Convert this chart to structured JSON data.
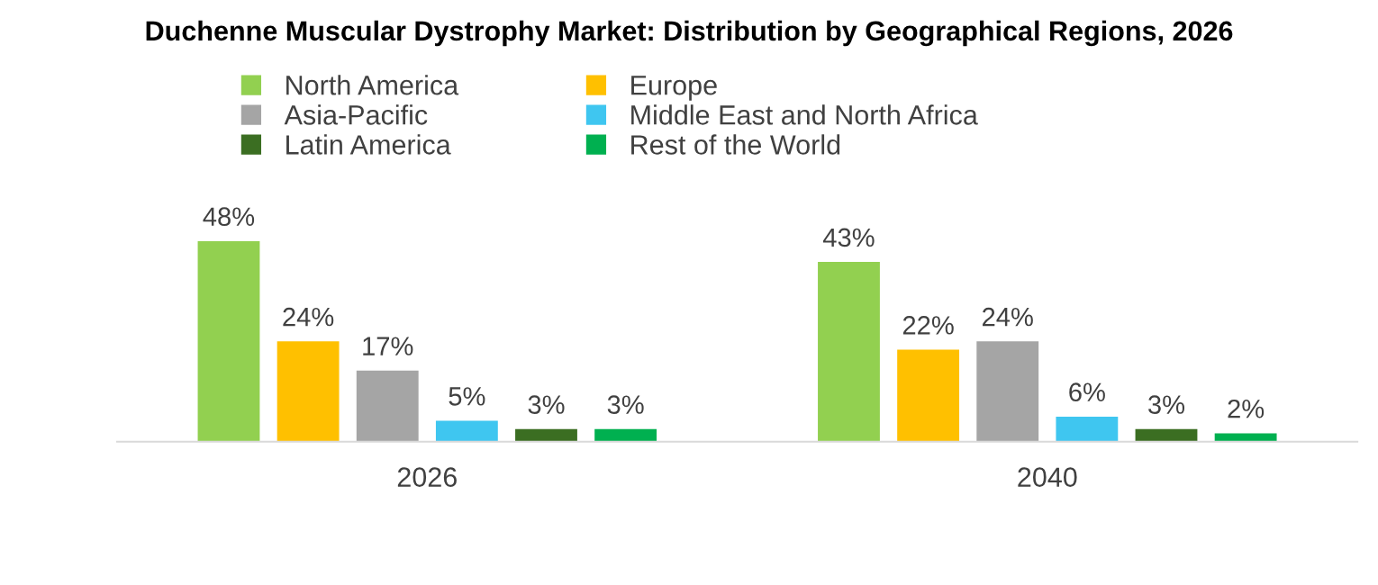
{
  "chart_data": {
    "type": "bar",
    "title": "Duchenne Muscular Dystrophy Market: Distribution by Geographical Regions, 2026",
    "categories": [
      "2026",
      "2040"
    ],
    "series": [
      {
        "name": "North America",
        "color": "#92d050",
        "values": [
          48,
          43
        ],
        "value_labels": [
          "48%",
          "43%"
        ]
      },
      {
        "name": "Europe",
        "color": "#ffc000",
        "values": [
          24,
          22
        ],
        "value_labels": [
          "24%",
          "22%"
        ]
      },
      {
        "name": "Asia-Pacific",
        "color": "#a5a5a5",
        "values": [
          17,
          24
        ],
        "value_labels": [
          "17%",
          "24%"
        ]
      },
      {
        "name": "Middle East and North Africa",
        "color": "#3fc6f0",
        "values": [
          5,
          6
        ],
        "value_labels": [
          "5%",
          "6%"
        ]
      },
      {
        "name": "Latin America",
        "color": "#3b6e22",
        "values": [
          3,
          3
        ],
        "value_labels": [
          "3%",
          "3%"
        ]
      },
      {
        "name": "Rest of the World",
        "color": "#00b050",
        "values": [
          3,
          2
        ],
        "value_labels": [
          "3%",
          "2%"
        ]
      }
    ],
    "legend": "top",
    "tick_labels": "x"
  }
}
